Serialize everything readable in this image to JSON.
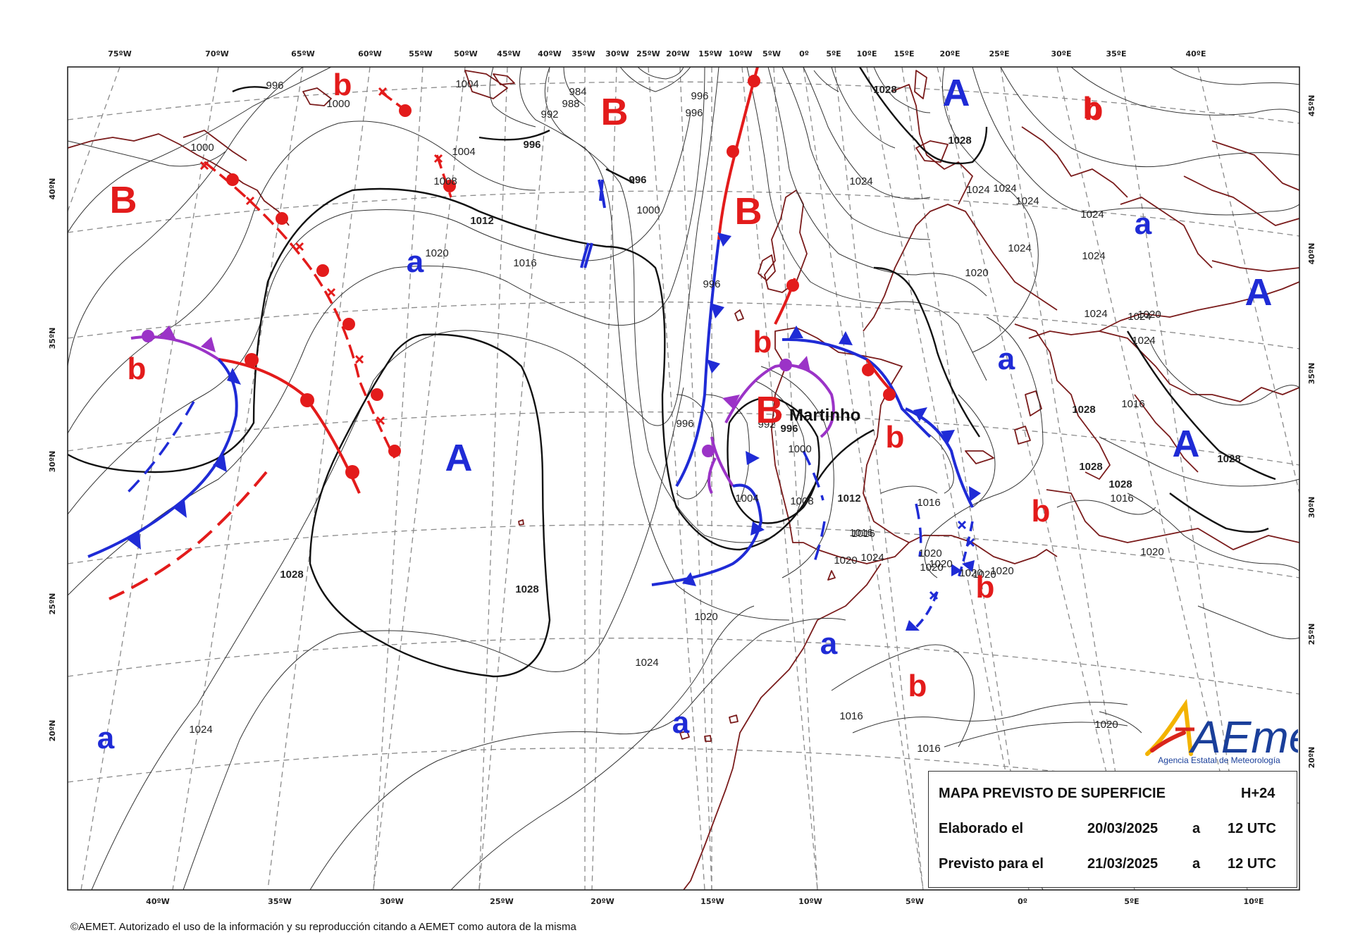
{
  "top_ticks": [
    "75ºW",
    "70ºW",
    "65ºW",
    "60ºW",
    "55ºW",
    "50ºW",
    "45ºW",
    "40ºW",
    "35ºW",
    "30ºW",
    "25ºW",
    "20ºW",
    "15ºW",
    "10ºW",
    "5ºW",
    "0º",
    "5ºE",
    "10ºE",
    "15ºE",
    "20ºE",
    "25ºE",
    "30ºE",
    "35ºE",
    "40ºE"
  ],
  "bottom_ticks": [
    "40ºW",
    "35ºW",
    "30ºW",
    "25ºW",
    "20ºW",
    "15ºW",
    "10ºW",
    "5ºW",
    "0º",
    "5ºE",
    "10ºE"
  ],
  "left_ticks": [
    "40ºN",
    "35ºN",
    "30ºN",
    "25ºN",
    "20ºN"
  ],
  "right_ticks": [
    "45ºN",
    "40ºN",
    "35ºN",
    "30ºN",
    "25ºN",
    "20ºN"
  ],
  "isobar_labels": [
    {
      "t": "996",
      "bold": false
    },
    {
      "t": "1000",
      "bold": false
    },
    {
      "t": "1004",
      "bold": false
    },
    {
      "t": "984",
      "bold": false
    },
    {
      "t": "988",
      "bold": false
    },
    {
      "t": "992",
      "bold": false
    },
    {
      "t": "996",
      "bold": true
    },
    {
      "t": "996",
      "bold": false
    },
    {
      "t": "996",
      "bold": false
    },
    {
      "t": "1004",
      "bold": false
    },
    {
      "t": "1008",
      "bold": false
    },
    {
      "t": "1000",
      "bold": false
    },
    {
      "t": "996",
      "bold": true
    },
    {
      "t": "1000",
      "bold": false
    },
    {
      "t": "1012",
      "bold": true
    },
    {
      "t": "1020",
      "bold": false
    },
    {
      "t": "1016",
      "bold": false
    },
    {
      "t": "996",
      "bold": false
    },
    {
      "t": "1028",
      "bold": true
    },
    {
      "t": "1028",
      "bold": true
    },
    {
      "t": "1024",
      "bold": false
    },
    {
      "t": "1020",
      "bold": false
    },
    {
      "t": "1024",
      "bold": false
    },
    {
      "t": "996",
      "bold": false
    },
    {
      "t": "996",
      "bold": true
    },
    {
      "t": "992",
      "bold": false
    },
    {
      "t": "1000",
      "bold": false
    },
    {
      "t": "1004",
      "bold": false
    },
    {
      "t": "1008",
      "bold": false
    },
    {
      "t": "1012",
      "bold": true
    },
    {
      "t": "1016",
      "bold": false
    },
    {
      "t": "1016",
      "bold": false
    },
    {
      "t": "1020",
      "bold": false
    },
    {
      "t": "1020",
      "bold": false
    },
    {
      "t": "1020",
      "bold": false
    },
    {
      "t": "1016",
      "bold": false
    },
    {
      "t": "1016",
      "bold": false
    },
    {
      "t": "1016",
      "bold": false
    },
    {
      "t": "1020",
      "bold": false
    },
    {
      "t": "1028",
      "bold": true
    },
    {
      "t": "1028",
      "bold": true
    },
    {
      "t": "1024",
      "bold": false
    },
    {
      "t": "1024",
      "bold": false
    },
    {
      "t": "1024",
      "bold": false
    },
    {
      "t": "1024",
      "bold": false
    },
    {
      "t": "1024",
      "bold": false
    },
    {
      "t": "1024",
      "bold": false
    },
    {
      "t": "1024",
      "bold": false
    },
    {
      "t": "1024",
      "bold": false
    },
    {
      "t": "1020",
      "bold": false
    },
    {
      "t": "1024",
      "bold": false
    },
    {
      "t": "1024",
      "bold": false
    },
    {
      "t": "1020",
      "bold": false
    },
    {
      "t": "1028",
      "bold": true
    },
    {
      "t": "1028",
      "bold": true
    },
    {
      "t": "1028",
      "bold": true
    },
    {
      "t": "1028",
      "bold": true
    },
    {
      "t": "1020",
      "bold": false
    },
    {
      "t": "1016",
      "bold": false
    },
    {
      "t": "1020",
      "bold": false
    },
    {
      "t": "1020",
      "bold": false
    },
    {
      "t": "1024",
      "bold": false
    },
    {
      "t": "1020",
      "bold": false
    },
    {
      "t": "1020",
      "bold": false
    },
    {
      "t": "1016",
      "bold": false
    }
  ],
  "pressure_systems": [
    {
      "t": "b",
      "type": "low-minor"
    },
    {
      "t": "b",
      "type": "low-minor"
    },
    {
      "t": "B",
      "type": "low-major"
    },
    {
      "t": "B",
      "type": "low-major"
    },
    {
      "t": "B",
      "type": "low-major"
    },
    {
      "t": "b",
      "type": "low-minor"
    },
    {
      "t": "B",
      "type": "low-major"
    },
    {
      "t": "b",
      "type": "low-minor"
    },
    {
      "t": "b",
      "type": "low-minor"
    },
    {
      "t": "b",
      "type": "low-minor"
    },
    {
      "t": "b",
      "type": "low-minor"
    },
    {
      "t": "b",
      "type": "low-minor"
    },
    {
      "t": "b",
      "type": "low-minor"
    },
    {
      "t": "A",
      "type": "high-major"
    },
    {
      "t": "A",
      "type": "high-major"
    },
    {
      "t": "A",
      "type": "high-major"
    },
    {
      "t": "A",
      "type": "high-major"
    },
    {
      "t": "a",
      "type": "high-minor"
    },
    {
      "t": "a",
      "type": "high-minor"
    },
    {
      "t": "a",
      "type": "high-minor"
    },
    {
      "t": "a",
      "type": "high-minor"
    },
    {
      "t": "a",
      "type": "high-minor"
    },
    {
      "t": "a",
      "type": "high-minor"
    }
  ],
  "colors": {
    "low": "#e31b1b",
    "high": "#1f2bd6",
    "warm": "#e31b1b",
    "cold": "#1f2bd6",
    "occluded": "#9b33c7",
    "coast": "#7a1b1b",
    "grid": "#888888",
    "isobar": "#333333"
  },
  "storm_name": "Martinho",
  "info": {
    "title": "MAPA PREVISTO DE SUPERFICIE",
    "lead": "H+24",
    "made_label": "Elaborado el",
    "made_date": "20/03/2025",
    "made_at": "a",
    "made_time": "12 UTC",
    "valid_label": "Previsto para el",
    "valid_date": "21/03/2025",
    "valid_at": "a",
    "valid_time": "12 UTC"
  },
  "logo": {
    "word": "AEmet",
    "subtitle": "Agencia Estatal de Meteorología"
  },
  "copyright": "©AEMET. Autorizado el uso de la información y su reproducción citando a AEMET como autora de la misma"
}
